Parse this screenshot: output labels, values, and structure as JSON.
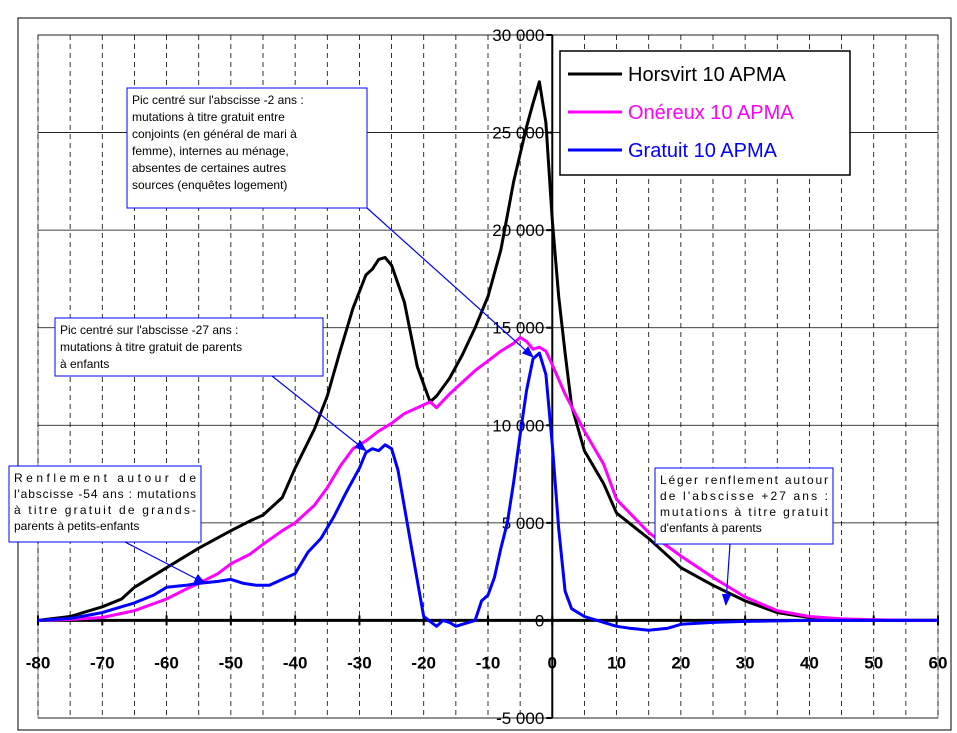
{
  "chart_data": {
    "type": "line",
    "xlim": [
      -80,
      60
    ],
    "ylim": [
      -5000,
      30000
    ],
    "x_ticks": [
      -80,
      -70,
      -60,
      -50,
      -40,
      -30,
      -20,
      -10,
      0,
      10,
      20,
      30,
      40,
      50,
      60
    ],
    "x_tick_labels": [
      "-80",
      "-70",
      "-60",
      "-50",
      "-40",
      "-30",
      "-20",
      "-10",
      "0",
      "10",
      "20",
      "30",
      "40",
      "50",
      "60"
    ],
    "y_ticks": [
      -5000,
      0,
      5000,
      10000,
      15000,
      20000,
      25000,
      30000
    ],
    "y_tick_labels": [
      "-5 000",
      "0",
      "5 000",
      "10 000",
      "15 000",
      "20 000",
      "25 000",
      "30 000"
    ],
    "grid": "vertical dashed every 5, horizontal solid every 5000",
    "legend_position": "top-right",
    "series": [
      {
        "name": "Horsvirt 10 APMA",
        "color": "#000000",
        "x": [
          -80,
          -75,
          -70,
          -67,
          -65,
          -60,
          -55,
          -50,
          -47,
          -45,
          -42,
          -40,
          -37,
          -35,
          -33,
          -31,
          -29,
          -28,
          -27,
          -26,
          -25,
          -23,
          -21,
          -19,
          -18,
          -16,
          -14,
          -12,
          -10,
          -8,
          -6,
          -4,
          -3,
          -2,
          -1,
          0,
          1,
          2,
          3,
          5,
          8,
          10,
          15,
          20,
          25,
          30,
          35,
          40,
          45,
          50,
          55,
          60
        ],
        "y": [
          0,
          200,
          700,
          1100,
          1700,
          2700,
          3700,
          4600,
          5100,
          5400,
          6300,
          7800,
          9800,
          11500,
          13800,
          16000,
          17700,
          18000,
          18500,
          18600,
          18200,
          16300,
          13000,
          11200,
          11500,
          12400,
          13600,
          15000,
          16600,
          19000,
          22500,
          25300,
          26500,
          27600,
          25500,
          20500,
          16600,
          13700,
          11000,
          8700,
          7000,
          5500,
          4200,
          2700,
          1800,
          1000,
          400,
          150,
          50,
          10,
          0,
          0
        ]
      },
      {
        "name": "Onéreux 10 APMA",
        "color": "#ff00ff",
        "x": [
          -80,
          -75,
          -70,
          -65,
          -60,
          -57,
          -55,
          -52,
          -50,
          -47,
          -45,
          -42,
          -40,
          -37,
          -35,
          -33,
          -31,
          -29,
          -27,
          -25,
          -23,
          -21,
          -19,
          -18,
          -16,
          -14,
          -12,
          -10,
          -8,
          -6,
          -5,
          -4,
          -3,
          -2,
          -1,
          0,
          2,
          5,
          8,
          10,
          15,
          20,
          25,
          30,
          35,
          40,
          45,
          50,
          55,
          60
        ],
        "y": [
          0,
          50,
          150,
          500,
          1100,
          1600,
          1900,
          2400,
          2900,
          3400,
          3900,
          4600,
          5000,
          5900,
          6800,
          7900,
          8800,
          9200,
          9700,
          10100,
          10600,
          10900,
          11200,
          10900,
          11600,
          12200,
          12800,
          13300,
          13800,
          14200,
          14500,
          14300,
          13900,
          14000,
          13800,
          13100,
          11600,
          9700,
          8000,
          6200,
          4500,
          3300,
          2200,
          1200,
          500,
          200,
          80,
          30,
          10,
          0
        ]
      },
      {
        "name": "Gratuit 10 APMA",
        "color": "#0000ff",
        "x": [
          -80,
          -75,
          -70,
          -65,
          -62,
          -60,
          -57,
          -55,
          -52,
          -50,
          -48,
          -46,
          -44,
          -42,
          -40,
          -38,
          -36,
          -34,
          -32,
          -30,
          -29,
          -28,
          -27,
          -26,
          -25,
          -24,
          -22,
          -20,
          -18,
          -17,
          -16,
          -15,
          -14,
          -13,
          -12,
          -11,
          -10,
          -9,
          -8,
          -7,
          -6,
          -5,
          -4,
          -3,
          -2,
          -1,
          0,
          1,
          2,
          3,
          5,
          8,
          10,
          12,
          15,
          18,
          20,
          25,
          30,
          40,
          50,
          60
        ],
        "y": [
          0,
          100,
          400,
          900,
          1300,
          1700,
          1800,
          1900,
          2000,
          2100,
          1900,
          1800,
          1800,
          2100,
          2400,
          3500,
          4200,
          5300,
          6600,
          7800,
          8600,
          8800,
          8700,
          9000,
          8800,
          7700,
          3900,
          200,
          -300,
          0,
          -100,
          -300,
          -200,
          -100,
          0,
          1000,
          1300,
          2200,
          3700,
          5000,
          7100,
          9500,
          11800,
          13400,
          13700,
          12600,
          9000,
          4700,
          1500,
          600,
          200,
          -100,
          -300,
          -400,
          -500,
          -400,
          -200,
          -100,
          -50,
          0,
          0,
          0
        ]
      }
    ],
    "annotations": [
      {
        "lines": [
          "Pic centré sur l'abscisse -2 ans :",
          "mutations à titre gratuit entre",
          "conjoints (en général de mari à",
          "femme), internes au ménage,",
          "absentes de certaines autres",
          "sources (enquêtes logement)"
        ],
        "target_x": -3,
        "target_y": 13500
      },
      {
        "lines": [
          "Pic centré sur l'abscisse -27 ans :",
          "mutations à titre gratuit de parents",
          "à enfants"
        ],
        "target_x": -29,
        "target_y": 8700
      },
      {
        "lines": [
          "Renflement autour de",
          "l'abscisse -54 ans : mutations",
          "à titre gratuit de grands-",
          "parents à petits-enfants"
        ],
        "target_x": -54,
        "target_y": 1900
      },
      {
        "lines": [
          "Léger renflement autour",
          "de l'abscisse +27 ans :",
          "mutations à titre gratuit",
          "d'enfants à parents"
        ],
        "target_x": 27,
        "target_y": 800
      }
    ]
  }
}
